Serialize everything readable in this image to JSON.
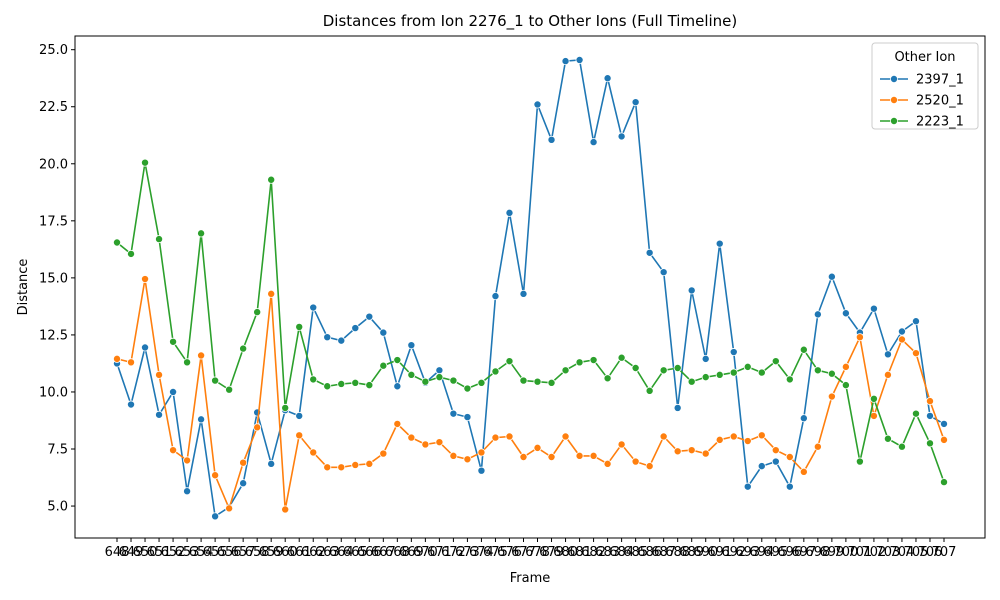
{
  "chart_data": {
    "type": "line",
    "title": "Distances from Ion 2276_1 to Other Ions (Full Timeline)",
    "xlabel": "Frame",
    "ylabel": "Distance",
    "ylim": [
      3.6,
      25.6
    ],
    "yticks": [
      5.0,
      7.5,
      10.0,
      12.5,
      15.0,
      17.5,
      20.0,
      22.5,
      25.0
    ],
    "ytick_labels": [
      "5.0",
      "7.5",
      "10.0",
      "12.5",
      "15.0",
      "17.5",
      "20.0",
      "22.5",
      "25.0"
    ],
    "grid": false,
    "legend": {
      "title": "Other Ion",
      "placement": "top-right"
    },
    "x": [
      "648",
      "649",
      "650",
      "651",
      "652",
      "653",
      "654",
      "655",
      "656",
      "657",
      "658",
      "659",
      "660",
      "661",
      "662",
      "663",
      "664",
      "665",
      "666",
      "667",
      "668",
      "669",
      "670",
      "671",
      "672",
      "673",
      "674",
      "675",
      "676",
      "677",
      "678",
      "679",
      "680",
      "681",
      "682",
      "683",
      "684",
      "685",
      "686",
      "687",
      "688",
      "689",
      "690",
      "691",
      "692",
      "693",
      "694",
      "695",
      "696",
      "697",
      "698",
      "699",
      "700",
      "701",
      "702",
      "703",
      "704",
      "705",
      "706",
      "707"
    ],
    "series": [
      {
        "name": "2397_1",
        "color": "#1f77b4",
        "values": [
          11.25,
          9.45,
          11.95,
          9.0,
          10.0,
          5.65,
          8.8,
          4.55,
          4.95,
          6.0,
          9.1,
          6.85,
          9.2,
          8.95,
          13.7,
          12.4,
          12.25,
          12.8,
          13.3,
          12.6,
          10.25,
          12.05,
          10.4,
          10.95,
          9.05,
          8.9,
          6.55,
          14.2,
          17.85,
          14.3,
          22.6,
          21.05,
          24.5,
          24.55,
          20.95,
          23.75,
          21.2,
          22.7,
          16.1,
          15.25,
          9.3,
          14.45,
          11.45,
          16.5,
          11.75,
          5.85,
          6.75,
          6.95,
          5.85,
          8.85,
          13.4,
          15.05,
          13.45,
          12.6,
          13.65,
          11.65,
          12.65,
          13.1,
          8.95,
          8.6
        ]
      },
      {
        "name": "2520_1",
        "color": "#ff7f0e",
        "values": [
          11.45,
          11.3,
          14.95,
          10.75,
          7.45,
          7.0,
          11.6,
          6.35,
          4.9,
          6.9,
          8.45,
          14.3,
          4.85,
          8.1,
          7.35,
          6.7,
          6.7,
          6.8,
          6.85,
          7.3,
          8.6,
          8.0,
          7.7,
          7.8,
          7.2,
          7.05,
          7.35,
          8.0,
          8.05,
          7.15,
          7.55,
          7.15,
          8.05,
          7.2,
          7.2,
          6.85,
          7.7,
          6.95,
          6.75,
          8.05,
          7.4,
          7.45,
          7.3,
          7.9,
          8.05,
          7.85,
          8.1,
          7.45,
          7.15,
          6.5,
          7.6,
          9.8,
          11.1,
          12.4,
          8.95,
          10.75,
          12.3,
          11.7,
          9.6,
          7.9
        ]
      },
      {
        "name": "2223_1",
        "color": "#2ca02c",
        "values": [
          16.55,
          16.05,
          20.05,
          16.7,
          12.2,
          11.3,
          16.95,
          10.5,
          10.1,
          11.9,
          13.5,
          19.3,
          9.3,
          12.85,
          10.55,
          10.25,
          10.35,
          10.4,
          10.3,
          11.15,
          11.4,
          10.75,
          10.45,
          10.65,
          10.5,
          10.15,
          10.4,
          10.9,
          11.35,
          10.5,
          10.45,
          10.4,
          10.95,
          11.3,
          11.4,
          10.6,
          11.5,
          11.05,
          10.05,
          10.95,
          11.05,
          10.45,
          10.65,
          10.75,
          10.85,
          11.1,
          10.85,
          11.35,
          10.55,
          11.85,
          10.95,
          10.8,
          10.3,
          6.95,
          9.7,
          7.95,
          7.6,
          9.05,
          7.75,
          6.05
        ]
      }
    ]
  }
}
